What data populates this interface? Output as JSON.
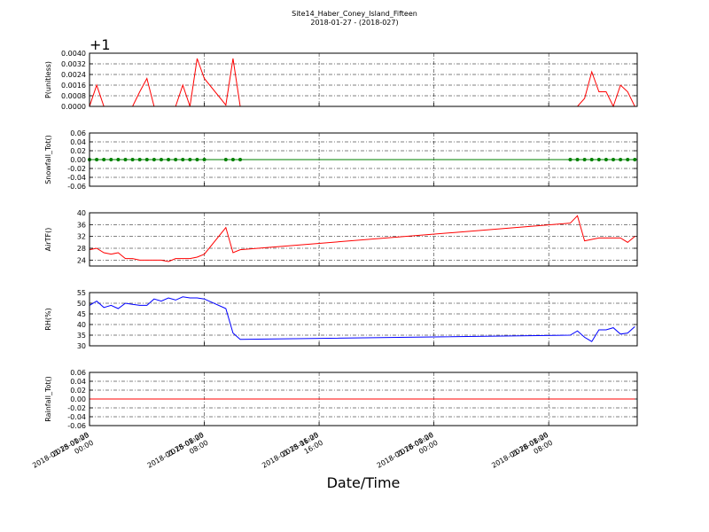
{
  "chart_data": [
    {
      "type": "line",
      "title": "Site14_Haber_Coney_Island_Fifteen",
      "subtitle": "2018-01-27 - (2018-027)",
      "ylabel": "P(unitless)",
      "offset_text": "+1",
      "color": "#ff0000",
      "markers": false,
      "grid": true,
      "x": [
        "2018-01-25 00:00",
        "2018-01-25 00:30",
        "2018-01-25 01:00",
        "2018-01-25 01:30",
        "2018-01-25 02:00",
        "2018-01-25 02:30",
        "2018-01-25 03:00",
        "2018-01-25 03:30",
        "2018-01-25 04:00",
        "2018-01-25 04:30",
        "2018-01-25 05:00",
        "2018-01-25 05:30",
        "2018-01-25 06:00",
        "2018-01-25 06:30",
        "2018-01-25 07:00",
        "2018-01-25 07:30",
        "2018-01-25 08:00",
        "2018-01-25 09:30",
        "2018-01-25 10:00",
        "2018-01-25 10:30",
        "2018-01-26 09:30",
        "2018-01-26 10:00",
        "2018-01-26 10:30",
        "2018-01-26 11:00",
        "2018-01-26 11:30",
        "2018-01-26 12:00",
        "2018-01-26 12:30",
        "2018-01-26 13:00",
        "2018-01-26 13:30",
        "2018-01-26 14:00"
      ],
      "values": [
        0,
        0.0016,
        0,
        0,
        0,
        0,
        0,
        0.0011,
        0.0021,
        0,
        0,
        0,
        0,
        0.0016,
        0,
        0.0036,
        0.0021,
        0.0001,
        0.0036,
        0,
        0,
        0,
        0.0006,
        0.0026,
        0.0011,
        0.0011,
        0,
        0.0016,
        0.0011,
        0
      ],
      "xlim": [
        "2018-01-25 00:00",
        "2018-01-26 14:10"
      ],
      "xticks": [
        "2018-01-25 00:00",
        "2018-01-25 08:00",
        "2018-01-25 16:00",
        "2018-01-26 00:00",
        "2018-01-26 08:00"
      ],
      "ylim": [
        0,
        0.004
      ],
      "yticks": [
        {
          "value": 0,
          "label": "0.0000"
        },
        0.0008,
        0.0016,
        0.0024,
        0.0032,
        {
          "value": 0.004,
          "label": "0.0040"
        }
      ]
    },
    {
      "type": "line",
      "ylabel": "Snowfall_Tot()",
      "color": "#008000",
      "markers": true,
      "grid": true,
      "x": [
        "2018-01-25 00:00",
        "2018-01-25 00:30",
        "2018-01-25 01:00",
        "2018-01-25 01:30",
        "2018-01-25 02:00",
        "2018-01-25 02:30",
        "2018-01-25 03:00",
        "2018-01-25 03:30",
        "2018-01-25 04:00",
        "2018-01-25 04:30",
        "2018-01-25 05:00",
        "2018-01-25 05:30",
        "2018-01-25 06:00",
        "2018-01-25 06:30",
        "2018-01-25 07:00",
        "2018-01-25 07:30",
        "2018-01-25 08:00",
        "2018-01-25 09:30",
        "2018-01-25 10:00",
        "2018-01-25 10:30",
        "2018-01-26 09:30",
        "2018-01-26 10:00",
        "2018-01-26 10:30",
        "2018-01-26 11:00",
        "2018-01-26 11:30",
        "2018-01-26 12:00",
        "2018-01-26 12:30",
        "2018-01-26 13:00",
        "2018-01-26 13:30",
        "2018-01-26 14:00"
      ],
      "values": [
        0,
        0,
        0,
        0,
        0,
        0,
        0,
        0,
        0,
        0,
        0,
        0,
        0,
        0,
        0,
        0,
        0,
        0,
        0,
        0,
        0,
        0,
        0,
        0,
        0,
        0,
        0,
        0,
        0,
        0
      ],
      "xlim": [
        "2018-01-25 00:00",
        "2018-01-26 14:10"
      ],
      "xticks": [
        "2018-01-25 00:00",
        "2018-01-25 08:00",
        "2018-01-25 16:00",
        "2018-01-26 00:00",
        "2018-01-26 08:00"
      ],
      "ylim": [
        -0.06,
        0.06
      ],
      "yticks": [
        -0.06,
        -0.04,
        -0.02,
        {
          "value": 0,
          "label": "0.00"
        },
        0.02,
        0.04,
        0.06
      ]
    },
    {
      "type": "line",
      "ylabel": "AirTF()",
      "color": "#ff0000",
      "markers": false,
      "grid": true,
      "x": [
        "2018-01-25 00:00",
        "2018-01-25 00:30",
        "2018-01-25 01:00",
        "2018-01-25 01:30",
        "2018-01-25 02:00",
        "2018-01-25 02:30",
        "2018-01-25 03:00",
        "2018-01-25 03:30",
        "2018-01-25 04:00",
        "2018-01-25 04:30",
        "2018-01-25 05:00",
        "2018-01-25 05:30",
        "2018-01-25 06:00",
        "2018-01-25 06:30",
        "2018-01-25 07:00",
        "2018-01-25 07:30",
        "2018-01-25 08:00",
        "2018-01-25 09:30",
        "2018-01-25 10:00",
        "2018-01-25 10:30",
        "2018-01-26 09:30",
        "2018-01-26 10:00",
        "2018-01-26 10:30",
        "2018-01-26 11:00",
        "2018-01-26 11:30",
        "2018-01-26 12:00",
        "2018-01-26 12:30",
        "2018-01-26 13:00",
        "2018-01-26 13:30",
        "2018-01-26 14:00"
      ],
      "values": [
        27.5,
        28,
        26.5,
        26,
        26.5,
        24.5,
        24.5,
        24,
        24,
        24,
        24,
        23.5,
        24.5,
        24.5,
        24.5,
        25,
        26,
        35,
        26.5,
        27.5,
        36.5,
        39,
        30.5,
        31,
        31.5,
        31.5,
        31.5,
        31.5,
        30,
        32
      ],
      "xlim": [
        "2018-01-25 00:00",
        "2018-01-26 14:10"
      ],
      "xticks": [
        "2018-01-25 00:00",
        "2018-01-25 08:00",
        "2018-01-25 16:00",
        "2018-01-26 00:00",
        "2018-01-26 08:00"
      ],
      "ylim": [
        22,
        40
      ],
      "yticks": [
        24,
        28,
        32,
        36,
        40
      ]
    },
    {
      "type": "line",
      "ylabel": "RH(%)",
      "color": "#0000ff",
      "markers": false,
      "grid": true,
      "x": [
        "2018-01-25 00:00",
        "2018-01-25 00:30",
        "2018-01-25 01:00",
        "2018-01-25 01:30",
        "2018-01-25 02:00",
        "2018-01-25 02:30",
        "2018-01-25 03:00",
        "2018-01-25 03:30",
        "2018-01-25 04:00",
        "2018-01-25 04:30",
        "2018-01-25 05:00",
        "2018-01-25 05:30",
        "2018-01-25 06:00",
        "2018-01-25 06:30",
        "2018-01-25 07:00",
        "2018-01-25 07:30",
        "2018-01-25 08:00",
        "2018-01-25 09:30",
        "2018-01-25 10:00",
        "2018-01-25 10:30",
        "2018-01-26 09:30",
        "2018-01-26 10:00",
        "2018-01-26 10:30",
        "2018-01-26 11:00",
        "2018-01-26 11:30",
        "2018-01-26 12:00",
        "2018-01-26 12:30",
        "2018-01-26 13:00",
        "2018-01-26 13:30",
        "2018-01-26 14:00"
      ],
      "values": [
        49,
        51,
        48,
        49,
        47.5,
        50,
        49.5,
        49,
        49,
        52,
        51,
        52.5,
        51.5,
        53,
        52.5,
        52.5,
        52,
        47.5,
        36,
        33,
        35,
        37,
        34,
        32,
        37.5,
        37.5,
        38.5,
        35.5,
        36,
        39
      ],
      "xlim": [
        "2018-01-25 00:00",
        "2018-01-26 14:10"
      ],
      "xticks": [
        "2018-01-25 00:00",
        "2018-01-25 08:00",
        "2018-01-25 16:00",
        "2018-01-26 00:00",
        "2018-01-26 08:00"
      ],
      "ylim": [
        30,
        55
      ],
      "yticks": [
        30,
        35,
        40,
        45,
        50,
        55
      ]
    },
    {
      "type": "line",
      "ylabel": "Rainfall_Tot()",
      "xlabel": "Date/Time",
      "color": "#ff0000",
      "markers": false,
      "grid": true,
      "x": [
        "2018-01-25 00:00",
        "2018-01-25 00:30",
        "2018-01-25 01:00",
        "2018-01-25 01:30",
        "2018-01-25 02:00",
        "2018-01-25 02:30",
        "2018-01-25 03:00",
        "2018-01-25 03:30",
        "2018-01-25 04:00",
        "2018-01-25 04:30",
        "2018-01-25 05:00",
        "2018-01-25 05:30",
        "2018-01-25 06:00",
        "2018-01-25 06:30",
        "2018-01-25 07:00",
        "2018-01-25 07:30",
        "2018-01-25 08:00",
        "2018-01-25 09:30",
        "2018-01-25 10:00",
        "2018-01-25 10:30",
        "2018-01-26 09:30",
        "2018-01-26 10:00",
        "2018-01-26 10:30",
        "2018-01-26 11:00",
        "2018-01-26 11:30",
        "2018-01-26 12:00",
        "2018-01-26 12:30",
        "2018-01-26 13:00",
        "2018-01-26 13:30",
        "2018-01-26 14:00"
      ],
      "values": [
        0,
        0,
        0,
        0,
        0,
        0,
        0,
        0,
        0,
        0,
        0,
        0,
        0,
        0,
        0,
        0,
        0,
        0,
        0,
        0,
        0,
        0,
        0,
        0,
        0,
        0,
        0,
        0,
        0,
        0
      ],
      "xlim": [
        "2018-01-25 00:00",
        "2018-01-26 14:10"
      ],
      "xticks": [
        "2018-01-25 00:00",
        "2018-01-25 08:00",
        "2018-01-25 16:00",
        "2018-01-26 00:00",
        "2018-01-26 08:00"
      ],
      "ylim": [
        -0.06,
        0.06
      ],
      "yticks": [
        -0.06,
        -0.04,
        -0.02,
        {
          "value": 0,
          "label": "0.00"
        },
        0.02,
        0.04,
        0.06
      ]
    }
  ]
}
